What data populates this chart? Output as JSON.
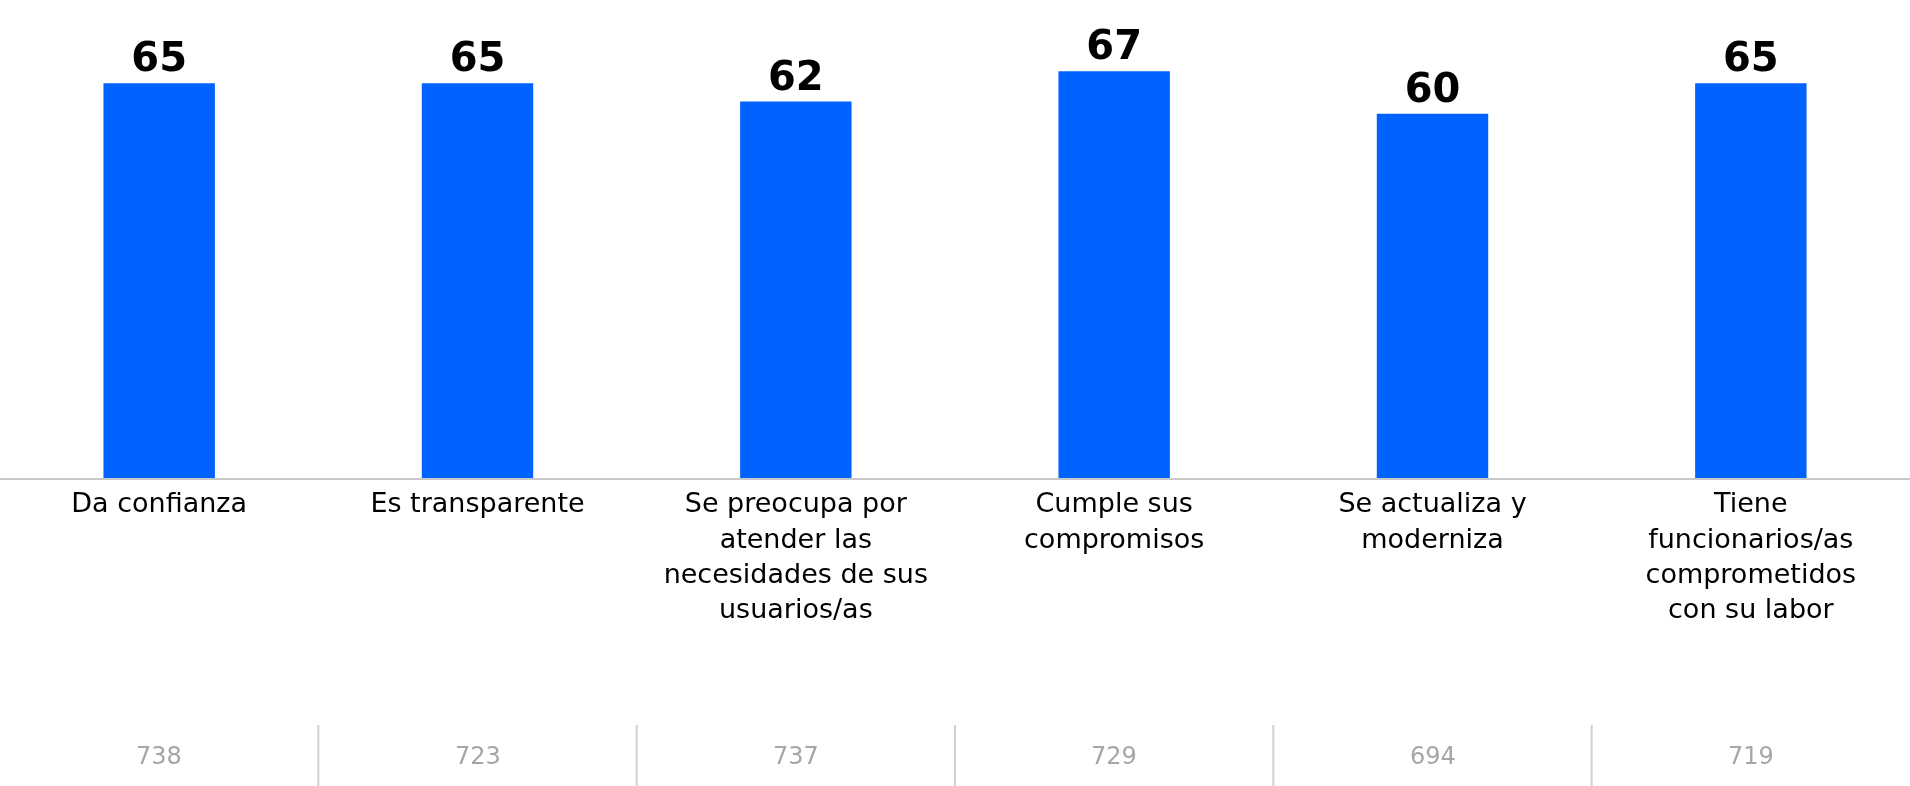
{
  "chart_data": {
    "type": "bar",
    "categories": [
      "Da confianza",
      "Es transparente",
      "Se preocupa por\natender las\nnecesidades de sus\nusuarios/as",
      "Cumple sus\ncompromisos",
      "Se actualiza y\nmoderniza",
      "Tiene\nfuncionarios/as\ncomprometidos\ncon su labor"
    ],
    "values": [
      65,
      65,
      62,
      67,
      60,
      65
    ],
    "color": "#0062ff",
    "data_labels": true,
    "annotations": [
      "738",
      "723",
      "737",
      "729",
      "694",
      "719"
    ]
  }
}
